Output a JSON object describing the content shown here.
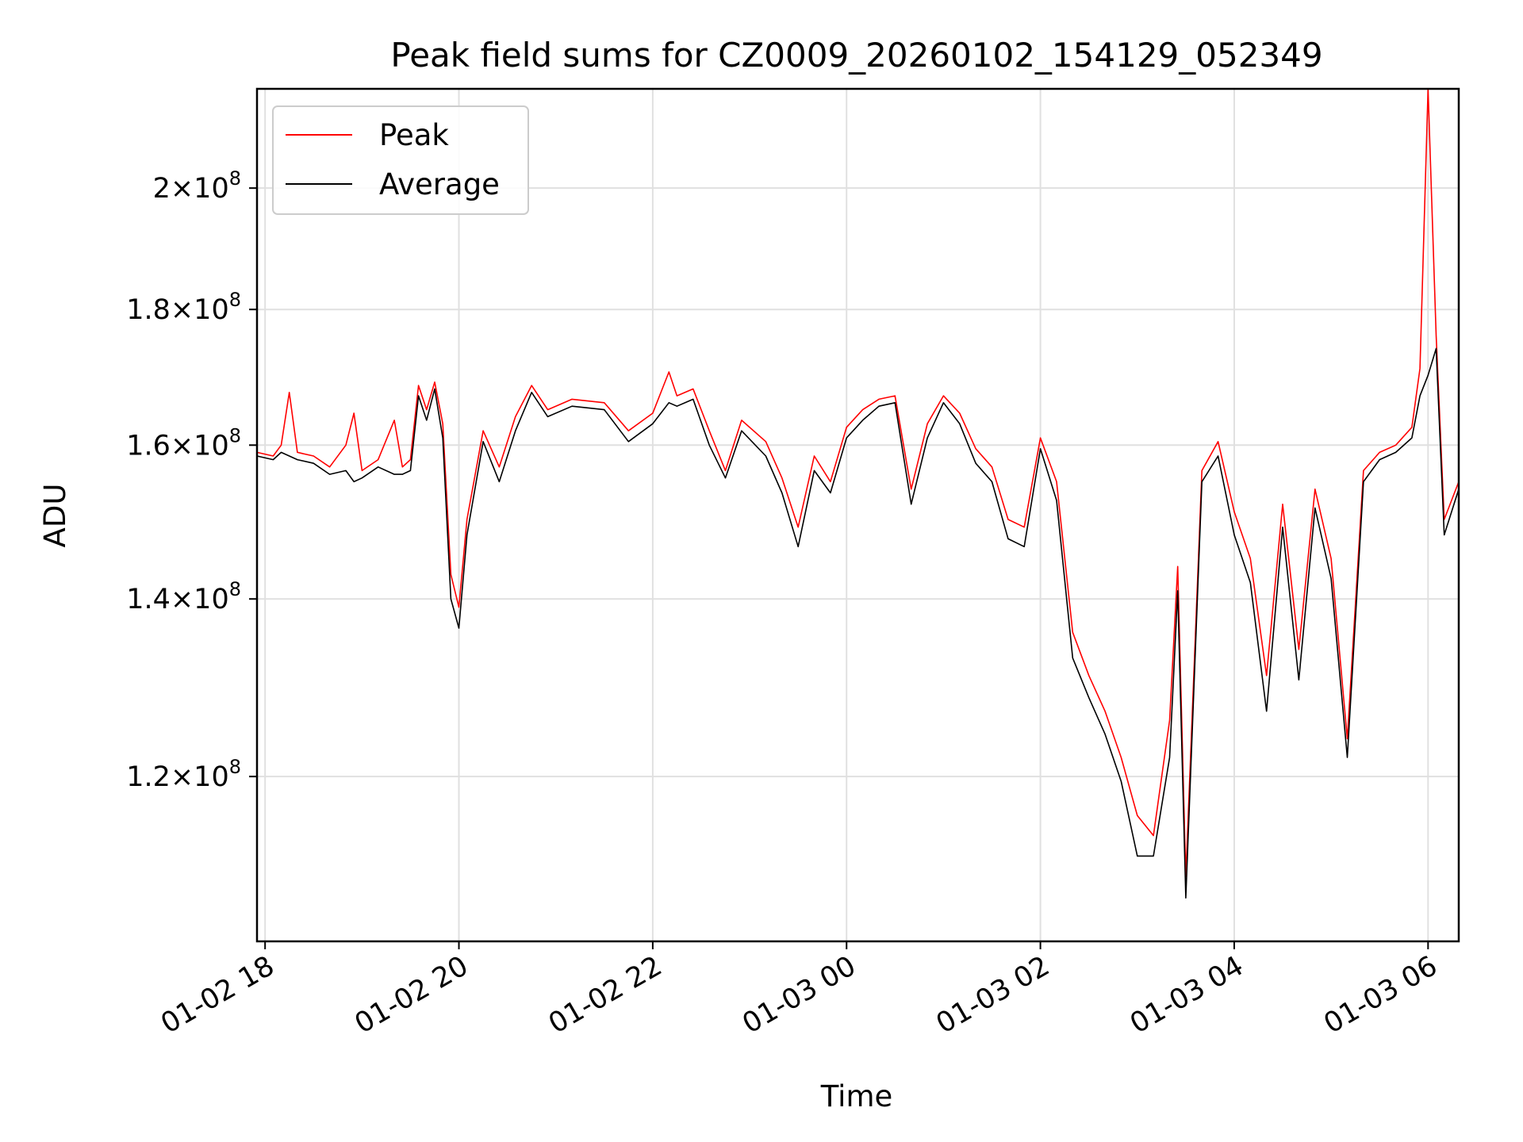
{
  "chart_data": {
    "type": "line",
    "title": "Peak field sums for CZ0009_20260102_154129_052349",
    "xlabel": "Time",
    "ylabel": "ADU",
    "y_scale": "log",
    "ylim": [
      104000000,
      218000000
    ],
    "xlim": [
      "2026-01-02 17:55",
      "2026-01-03 06:19"
    ],
    "grid": true,
    "legend_position": "top-left",
    "x_ticks": [
      {
        "value": "2026-01-02 18:00",
        "label": "01-02 18"
      },
      {
        "value": "2026-01-02 20:00",
        "label": "01-02 20"
      },
      {
        "value": "2026-01-02 22:00",
        "label": "01-02 22"
      },
      {
        "value": "2026-01-03 00:00",
        "label": "01-03 00"
      },
      {
        "value": "2026-01-03 02:00",
        "label": "01-03 02"
      },
      {
        "value": "2026-01-03 04:00",
        "label": "01-03 04"
      },
      {
        "value": "2026-01-03 06:00",
        "label": "01-03 06"
      }
    ],
    "y_ticks": [
      {
        "value": 120000000,
        "mantissa": "1.2",
        "exponent": "8"
      },
      {
        "value": 140000000,
        "mantissa": "1.4",
        "exponent": "8"
      },
      {
        "value": 160000000,
        "mantissa": "1.6",
        "exponent": "8"
      },
      {
        "value": 180000000,
        "mantissa": "1.8",
        "exponent": "8"
      },
      {
        "value": 200000000,
        "mantissa": "2",
        "exponent": "8"
      }
    ],
    "times_sign": "×",
    "tick_base": "10",
    "series": [
      {
        "name": "Peak",
        "color": "#ff0000",
        "points": [
          [
            "2026-01-02 17:55",
            159000000
          ],
          [
            "2026-01-02 18:05",
            158500000
          ],
          [
            "2026-01-02 18:10",
            160000000
          ],
          [
            "2026-01-02 18:15",
            167500000
          ],
          [
            "2026-01-02 18:20",
            159000000
          ],
          [
            "2026-01-02 18:30",
            158500000
          ],
          [
            "2026-01-02 18:40",
            157000000
          ],
          [
            "2026-01-02 18:50",
            160000000
          ],
          [
            "2026-01-02 18:55",
            164500000
          ],
          [
            "2026-01-02 19:00",
            156500000
          ],
          [
            "2026-01-02 19:10",
            158000000
          ],
          [
            "2026-01-02 19:20",
            163500000
          ],
          [
            "2026-01-02 19:25",
            157000000
          ],
          [
            "2026-01-02 19:30",
            158000000
          ],
          [
            "2026-01-02 19:35",
            168500000
          ],
          [
            "2026-01-02 19:40",
            165000000
          ],
          [
            "2026-01-02 19:45",
            169000000
          ],
          [
            "2026-01-02 19:50",
            163000000
          ],
          [
            "2026-01-02 19:55",
            143000000
          ],
          [
            "2026-01-02 20:00",
            139000000
          ],
          [
            "2026-01-02 20:05",
            150000000
          ],
          [
            "2026-01-02 20:15",
            162000000
          ],
          [
            "2026-01-02 20:25",
            157000000
          ],
          [
            "2026-01-02 20:35",
            164000000
          ],
          [
            "2026-01-02 20:45",
            168500000
          ],
          [
            "2026-01-02 20:55",
            165000000
          ],
          [
            "2026-01-02 21:10",
            166500000
          ],
          [
            "2026-01-02 21:30",
            166000000
          ],
          [
            "2026-01-02 21:45",
            162000000
          ],
          [
            "2026-01-02 22:00",
            164500000
          ],
          [
            "2026-01-02 22:10",
            170500000
          ],
          [
            "2026-01-02 22:15",
            167000000
          ],
          [
            "2026-01-02 22:25",
            168000000
          ],
          [
            "2026-01-02 22:35",
            162000000
          ],
          [
            "2026-01-02 22:45",
            156500000
          ],
          [
            "2026-01-02 22:55",
            163500000
          ],
          [
            "2026-01-02 23:10",
            160500000
          ],
          [
            "2026-01-02 23:20",
            155500000
          ],
          [
            "2026-01-02 23:30",
            149000000
          ],
          [
            "2026-01-02 23:40",
            158500000
          ],
          [
            "2026-01-02 23:50",
            155000000
          ],
          [
            "2026-01-03 00:00",
            162500000
          ],
          [
            "2026-01-03 00:10",
            165000000
          ],
          [
            "2026-01-03 00:20",
            166500000
          ],
          [
            "2026-01-03 00:30",
            167000000
          ],
          [
            "2026-01-03 00:40",
            154000000
          ],
          [
            "2026-01-03 00:50",
            163000000
          ],
          [
            "2026-01-03 01:00",
            167000000
          ],
          [
            "2026-01-03 01:10",
            164500000
          ],
          [
            "2026-01-03 01:20",
            159500000
          ],
          [
            "2026-01-03 01:30",
            157000000
          ],
          [
            "2026-01-03 01:40",
            150000000
          ],
          [
            "2026-01-03 01:50",
            149000000
          ],
          [
            "2026-01-03 02:00",
            161000000
          ],
          [
            "2026-01-03 02:10",
            155000000
          ],
          [
            "2026-01-03 02:20",
            136000000
          ],
          [
            "2026-01-03 02:30",
            131000000
          ],
          [
            "2026-01-03 02:40",
            127000000
          ],
          [
            "2026-01-03 02:50",
            122000000
          ],
          [
            "2026-01-03 03:00",
            116000000
          ],
          [
            "2026-01-03 03:10",
            114000000
          ],
          [
            "2026-01-03 03:20",
            126000000
          ],
          [
            "2026-01-03 03:25",
            144000000
          ],
          [
            "2026-01-03 03:30",
            110000000
          ],
          [
            "2026-01-03 03:40",
            156500000
          ],
          [
            "2026-01-03 03:50",
            160500000
          ],
          [
            "2026-01-03 04:00",
            151000000
          ],
          [
            "2026-01-03 04:10",
            145000000
          ],
          [
            "2026-01-03 04:20",
            131000000
          ],
          [
            "2026-01-03 04:30",
            152000000
          ],
          [
            "2026-01-03 04:40",
            134000000
          ],
          [
            "2026-01-03 04:50",
            154000000
          ],
          [
            "2026-01-03 05:00",
            145000000
          ],
          [
            "2026-01-03 05:10",
            124000000
          ],
          [
            "2026-01-03 05:20",
            156500000
          ],
          [
            "2026-01-03 05:30",
            159000000
          ],
          [
            "2026-01-03 05:40",
            160000000
          ],
          [
            "2026-01-03 05:50",
            162500000
          ],
          [
            "2026-01-03 05:55",
            171000000
          ],
          [
            "2026-01-03 06:00",
            218000000
          ],
          [
            "2026-01-03 06:05",
            176000000
          ],
          [
            "2026-01-03 06:10",
            150000000
          ],
          [
            "2026-01-03 06:19",
            155000000
          ]
        ]
      },
      {
        "name": "Average",
        "color": "#000000",
        "points": [
          [
            "2026-01-02 17:55",
            158500000
          ],
          [
            "2026-01-02 18:05",
            158000000
          ],
          [
            "2026-01-02 18:10",
            159000000
          ],
          [
            "2026-01-02 18:15",
            158500000
          ],
          [
            "2026-01-02 18:20",
            158000000
          ],
          [
            "2026-01-02 18:30",
            157500000
          ],
          [
            "2026-01-02 18:40",
            156000000
          ],
          [
            "2026-01-02 18:50",
            156500000
          ],
          [
            "2026-01-02 18:55",
            155000000
          ],
          [
            "2026-01-02 19:00",
            155500000
          ],
          [
            "2026-01-02 19:10",
            157000000
          ],
          [
            "2026-01-02 19:20",
            156000000
          ],
          [
            "2026-01-02 19:25",
            156000000
          ],
          [
            "2026-01-02 19:30",
            156500000
          ],
          [
            "2026-01-02 19:35",
            167000000
          ],
          [
            "2026-01-02 19:40",
            163500000
          ],
          [
            "2026-01-02 19:45",
            168000000
          ],
          [
            "2026-01-02 19:50",
            161000000
          ],
          [
            "2026-01-02 19:55",
            140000000
          ],
          [
            "2026-01-02 20:00",
            136500000
          ],
          [
            "2026-01-02 20:05",
            148000000
          ],
          [
            "2026-01-02 20:15",
            160500000
          ],
          [
            "2026-01-02 20:25",
            155000000
          ],
          [
            "2026-01-02 20:35",
            162000000
          ],
          [
            "2026-01-02 20:45",
            167500000
          ],
          [
            "2026-01-02 20:55",
            164000000
          ],
          [
            "2026-01-02 21:10",
            165500000
          ],
          [
            "2026-01-02 21:30",
            165000000
          ],
          [
            "2026-01-02 21:45",
            160500000
          ],
          [
            "2026-01-02 22:00",
            163000000
          ],
          [
            "2026-01-02 22:10",
            166000000
          ],
          [
            "2026-01-02 22:15",
            165500000
          ],
          [
            "2026-01-02 22:25",
            166500000
          ],
          [
            "2026-01-02 22:35",
            160000000
          ],
          [
            "2026-01-02 22:45",
            155500000
          ],
          [
            "2026-01-02 22:55",
            162000000
          ],
          [
            "2026-01-02 23:10",
            158500000
          ],
          [
            "2026-01-02 23:20",
            153500000
          ],
          [
            "2026-01-02 23:30",
            146500000
          ],
          [
            "2026-01-02 23:40",
            156500000
          ],
          [
            "2026-01-02 23:50",
            153500000
          ],
          [
            "2026-01-03 00:00",
            161000000
          ],
          [
            "2026-01-03 00:10",
            163500000
          ],
          [
            "2026-01-03 00:20",
            165500000
          ],
          [
            "2026-01-03 00:30",
            166000000
          ],
          [
            "2026-01-03 00:40",
            152000000
          ],
          [
            "2026-01-03 00:50",
            161000000
          ],
          [
            "2026-01-03 01:00",
            166000000
          ],
          [
            "2026-01-03 01:10",
            163000000
          ],
          [
            "2026-01-03 01:20",
            157500000
          ],
          [
            "2026-01-03 01:30",
            155000000
          ],
          [
            "2026-01-03 01:40",
            147500000
          ],
          [
            "2026-01-03 01:50",
            146500000
          ],
          [
            "2026-01-03 02:00",
            159500000
          ],
          [
            "2026-01-03 02:10",
            152500000
          ],
          [
            "2026-01-03 02:20",
            133000000
          ],
          [
            "2026-01-03 02:30",
            128500000
          ],
          [
            "2026-01-03 02:40",
            124500000
          ],
          [
            "2026-01-03 02:50",
            119500000
          ],
          [
            "2026-01-03 03:00",
            112000000
          ],
          [
            "2026-01-03 03:10",
            112000000
          ],
          [
            "2026-01-03 03:20",
            122000000
          ],
          [
            "2026-01-03 03:25",
            141000000
          ],
          [
            "2026-01-03 03:30",
            108000000
          ],
          [
            "2026-01-03 03:40",
            155000000
          ],
          [
            "2026-01-03 03:50",
            158500000
          ],
          [
            "2026-01-03 04:00",
            148000000
          ],
          [
            "2026-01-03 04:10",
            142000000
          ],
          [
            "2026-01-03 04:20",
            127000000
          ],
          [
            "2026-01-03 04:30",
            149000000
          ],
          [
            "2026-01-03 04:40",
            130500000
          ],
          [
            "2026-01-03 04:50",
            151500000
          ],
          [
            "2026-01-03 05:00",
            142500000
          ],
          [
            "2026-01-03 05:10",
            122000000
          ],
          [
            "2026-01-03 05:20",
            155000000
          ],
          [
            "2026-01-03 05:30",
            158000000
          ],
          [
            "2026-01-03 05:40",
            159000000
          ],
          [
            "2026-01-03 05:50",
            161000000
          ],
          [
            "2026-01-03 05:55",
            167000000
          ],
          [
            "2026-01-03 06:00",
            170000000
          ],
          [
            "2026-01-03 06:05",
            174000000
          ],
          [
            "2026-01-03 06:10",
            148000000
          ],
          [
            "2026-01-03 06:19",
            154000000
          ]
        ]
      }
    ]
  }
}
